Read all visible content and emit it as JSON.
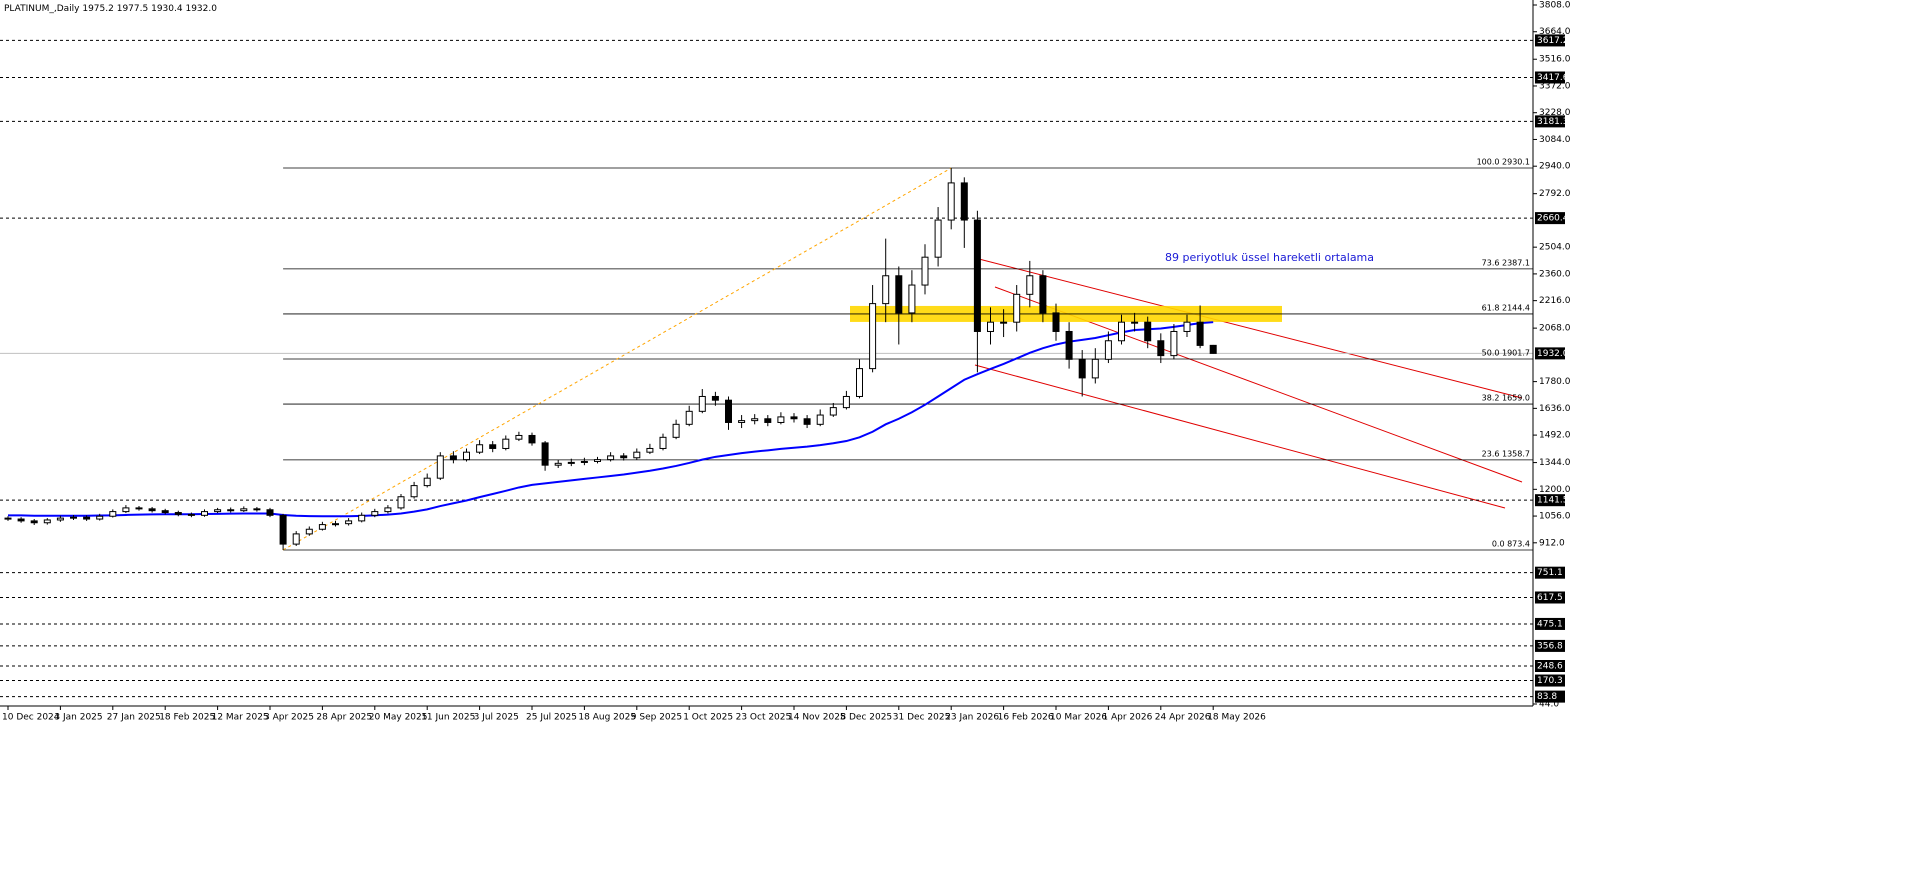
{
  "chart_data": {
    "type": "candlestick",
    "title": "PLATINUM_,Daily",
    "header_values": [
      1975.2,
      1977.5,
      1930.4,
      1932
    ],
    "header_value_labels": [
      "1975.2",
      "1977.5",
      "1930.4",
      "1932.0"
    ],
    "annotation": "89 periyotluk üssel hareketli ortalama",
    "candle_color": "#000000",
    "categories": [
      "10 Dec 2024",
      null,
      null,
      null,
      "3 Jan 2025",
      null,
      null,
      null,
      "27 Jan 2025",
      null,
      null,
      null,
      "18 Feb 2025",
      null,
      null,
      null,
      "12 Mar 2025",
      null,
      null,
      null,
      "3 Apr 2025",
      null,
      null,
      null,
      "28 Apr 2025",
      null,
      null,
      null,
      "20 May 2025",
      null,
      null,
      null,
      "11 Jun 2025",
      null,
      null,
      null,
      "3 Jul 2025",
      null,
      null,
      null,
      "25 Jul 2025",
      null,
      null,
      null,
      "18 Aug 2025",
      null,
      null,
      null,
      "9 Sep 2025",
      null,
      null,
      null,
      "1 Oct 2025",
      null,
      null,
      null,
      "23 Oct 2025",
      null,
      null,
      null,
      "14 Nov 2025",
      null,
      null,
      null,
      "8 Dec 2025",
      null,
      null,
      null,
      "31 Dec 2025",
      null,
      null,
      null,
      "23 Jan 2026",
      null,
      null,
      null,
      "16 Feb 2026",
      null,
      null,
      null,
      "10 Mar 2026",
      null,
      null,
      null,
      "1 Apr 2026",
      null,
      null,
      null,
      "24 Apr 2026",
      null,
      null,
      null,
      "18 May 2026"
    ],
    "open": [
      1045,
      1040,
      1030,
      1020,
      1035,
      1045,
      1050,
      1040,
      1055,
      1080,
      1100,
      1095,
      1085,
      1075,
      1065,
      1060,
      1080,
      1090,
      1085,
      1095,
      1090,
      1060,
      905,
      960,
      985,
      1010,
      1015,
      1030,
      1060,
      1080,
      1100,
      1160,
      1220,
      1260,
      1380,
      1360,
      1400,
      1440,
      1420,
      1470,
      1490,
      1450,
      1330,
      1340,
      1345,
      1350,
      1360,
      1380,
      1370,
      1400,
      1420,
      1480,
      1550,
      1620,
      1700,
      1680,
      1560,
      1570,
      1580,
      1560,
      1590,
      1580,
      1550,
      1600,
      1640,
      1700,
      1850,
      2200,
      2350,
      2150,
      2300,
      2450,
      2650,
      2850,
      2650,
      2050,
      2100,
      2100,
      2250,
      2350,
      2150,
      2050,
      1900,
      1800,
      1900,
      2000,
      2100,
      2100,
      2000,
      1920,
      2050,
      2100,
      1975.2
    ],
    "high": [
      1055,
      1050,
      1040,
      1045,
      1058,
      1062,
      1060,
      1068,
      1092,
      1115,
      1110,
      1105,
      1095,
      1085,
      1075,
      1092,
      1100,
      1102,
      1108,
      1105,
      1100,
      1068,
      975,
      1000,
      1025,
      1030,
      1045,
      1075,
      1095,
      1115,
      1175,
      1240,
      1285,
      1400,
      1405,
      1420,
      1465,
      1460,
      1490,
      1510,
      1505,
      1460,
      1360,
      1365,
      1370,
      1375,
      1400,
      1395,
      1420,
      1445,
      1500,
      1575,
      1650,
      1740,
      1725,
      1700,
      1600,
      1605,
      1600,
      1615,
      1610,
      1600,
      1630,
      1665,
      1730,
      1900,
      2300,
      2550,
      2400,
      2380,
      2520,
      2720,
      2930.1,
      2880,
      2700,
      2180,
      2170,
      2300,
      2430,
      2380,
      2200,
      2100,
      1950,
      1960,
      2050,
      2140,
      2150,
      2130,
      2040,
      2090,
      2140,
      2190,
      1977.5
    ],
    "low": [
      1030,
      1020,
      1008,
      1010,
      1025,
      1035,
      1030,
      1032,
      1048,
      1072,
      1085,
      1075,
      1065,
      1055,
      1050,
      1052,
      1072,
      1075,
      1078,
      1080,
      1050,
      873.4,
      895,
      950,
      978,
      1000,
      1005,
      1022,
      1050,
      1070,
      1090,
      1150,
      1210,
      1250,
      1340,
      1350,
      1390,
      1400,
      1410,
      1460,
      1435,
      1300,
      1315,
      1325,
      1330,
      1340,
      1350,
      1355,
      1360,
      1390,
      1410,
      1470,
      1540,
      1610,
      1650,
      1520,
      1530,
      1550,
      1540,
      1550,
      1560,
      1530,
      1540,
      1590,
      1630,
      1690,
      1830,
      2100,
      1980,
      2100,
      2250,
      2400,
      2600,
      2500,
      1830,
      1980,
      2020,
      2050,
      2180,
      2100,
      2000,
      1850,
      1700,
      1770,
      1880,
      1980,
      2050,
      1960,
      1880,
      1900,
      2020,
      1960,
      1930.4
    ],
    "close": [
      1040,
      1030,
      1020,
      1035,
      1045,
      1050,
      1040,
      1055,
      1080,
      1100,
      1095,
      1085,
      1075,
      1065,
      1060,
      1080,
      1090,
      1085,
      1095,
      1090,
      1060,
      905,
      960,
      985,
      1010,
      1015,
      1030,
      1060,
      1080,
      1100,
      1160,
      1220,
      1260,
      1380,
      1360,
      1400,
      1440,
      1420,
      1470,
      1490,
      1450,
      1330,
      1340,
      1345,
      1350,
      1360,
      1380,
      1370,
      1400,
      1420,
      1480,
      1550,
      1620,
      1700,
      1680,
      1560,
      1570,
      1580,
      1560,
      1590,
      1580,
      1550,
      1600,
      1640,
      1700,
      1850,
      2200,
      2350,
      2150,
      2300,
      2450,
      2650,
      2850,
      2650,
      2050,
      2100,
      2100,
      2250,
      2350,
      2150,
      2050,
      1900,
      1800,
      1900,
      2000,
      2100,
      2100,
      2000,
      1920,
      2050,
      2100,
      1975,
      1932
    ],
    "ema": {
      "color": "#0000ff",
      "values": [
        1060,
        1060,
        1058,
        1058,
        1058,
        1058,
        1058,
        1059,
        1060,
        1062,
        1064,
        1065,
        1066,
        1066,
        1066,
        1067,
        1068,
        1069,
        1070,
        1070,
        1070,
        1062,
        1058,
        1056,
        1055,
        1055,
        1055,
        1057,
        1060,
        1064,
        1070,
        1080,
        1092,
        1110,
        1125,
        1140,
        1158,
        1175,
        1192,
        1210,
        1224,
        1232,
        1240,
        1248,
        1256,
        1264,
        1272,
        1280,
        1290,
        1300,
        1312,
        1326,
        1342,
        1360,
        1375,
        1385,
        1395,
        1403,
        1410,
        1418,
        1424,
        1430,
        1438,
        1448,
        1460,
        1480,
        1510,
        1550,
        1580,
        1615,
        1655,
        1700,
        1745,
        1790,
        1820,
        1848,
        1875,
        1905,
        1935,
        1960,
        1980,
        1995,
        2005,
        2015,
        2030,
        2045,
        2058,
        2062,
        2066,
        2075,
        2085,
        2095,
        2100
      ]
    },
    "ylim": [
      44,
      3808
    ],
    "yticks": [
      {
        "value": 3808,
        "label": "3808.0"
      },
      {
        "value": 3664,
        "label": "3664.0"
      },
      {
        "value": 3516,
        "label": "3516.0"
      },
      {
        "value": 3372,
        "label": "3372.0"
      },
      {
        "value": 3228,
        "label": "3228.0"
      },
      {
        "value": 3084,
        "label": "3084.0"
      },
      {
        "value": 2940,
        "label": "2940.0"
      },
      {
        "value": 2792,
        "label": "2792.0"
      },
      {
        "value": 2504,
        "label": "2504.0"
      },
      {
        "value": 2360,
        "label": "2360.0"
      },
      {
        "value": 2216,
        "label": "2216.0"
      },
      {
        "value": 2068,
        "label": "2068.0"
      },
      {
        "value": 1780,
        "label": "1780.0"
      },
      {
        "value": 1636,
        "label": "1636.0"
      },
      {
        "value": 1492,
        "label": "1492.0"
      },
      {
        "value": 1344,
        "label": "1344.0"
      },
      {
        "value": 1200,
        "label": "1200.0"
      },
      {
        "value": 1056,
        "label": "1056.0"
      },
      {
        "value": 912,
        "label": "912.0"
      },
      {
        "value": 44,
        "label": "44.0"
      }
    ],
    "levels": [
      3617.2,
      3417.6,
      3181.3,
      2660.4,
      1141.5,
      751.1,
      617.5,
      475.1,
      356.8,
      248.6,
      170.3,
      83.8
    ],
    "current_price": {
      "value": 1932,
      "label": "1932.0"
    },
    "fibo_levels": [
      {
        "value": 2930.1,
        "label": "100.0 2930.1"
      },
      {
        "value": 2387.1,
        "label": "73.6 2387.1"
      },
      {
        "value": 2144.4,
        "label": "61.8 2144.4"
      },
      {
        "value": 1901.7,
        "label": "50.0 1901.7"
      },
      {
        "value": 1659.0,
        "label": "38.2 1659.0"
      },
      {
        "value": 1358.7,
        "label": "23.6 1358.7"
      },
      {
        "value": 873.4,
        "label": "0.0 873.4"
      }
    ]
  }
}
